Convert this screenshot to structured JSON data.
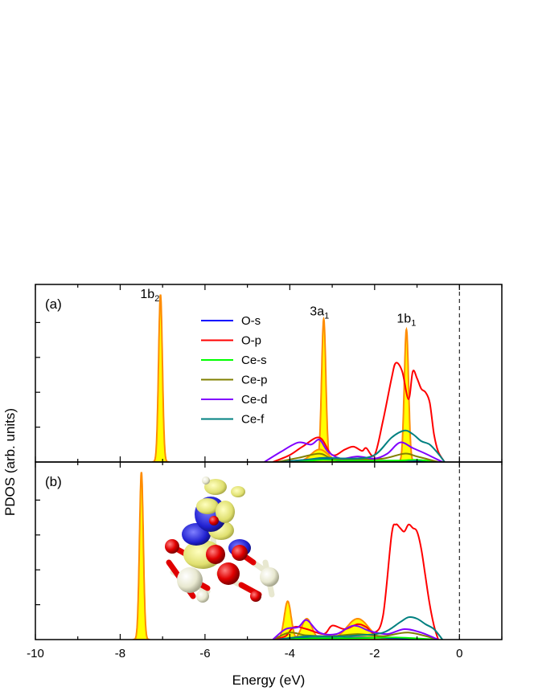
{
  "figure": {
    "ylabel": "PDOS (arb. units)",
    "xlabel": "Energy (eV)",
    "inset_image": "molecule-isosurface-render"
  },
  "chart_data": [
    {
      "type": "area",
      "panel_label": "(a)",
      "xlim": [
        -10,
        1
      ],
      "ylim": [
        0,
        2.5
      ],
      "x_ticks": [
        -10,
        -8,
        -6,
        -4,
        -2,
        0
      ],
      "fermi_level": 0,
      "legend_position": "upper-center",
      "legend": [
        "O-s",
        "O-p",
        "Ce-s",
        "Ce-p",
        "Ce-d",
        "Ce-f"
      ],
      "annotations": [
        {
          "base": "1b",
          "sub": "2",
          "x": -7.3,
          "y": 2.35
        },
        {
          "base": "3a",
          "sub": "1",
          "x": -3.3,
          "y": 2.1
        },
        {
          "base": "1b",
          "sub": "1",
          "x": -1.25,
          "y": 2.0
        }
      ],
      "filled_peaks": [
        {
          "x": -7.05,
          "height": 2.4,
          "width": 0.045
        },
        {
          "x": -3.2,
          "height": 2.05,
          "width": 0.05
        },
        {
          "x": -1.25,
          "height": 1.9,
          "width": 0.05
        },
        {
          "x": -3.3,
          "height": 0.18,
          "width": 0.2
        }
      ],
      "series": [
        {
          "name": "O-s",
          "color": "#0000ff",
          "x": [
            -4.3,
            -3.6,
            -3.2,
            -2.8,
            -1.8,
            -1.2,
            -0.5
          ],
          "y": [
            0,
            0.03,
            0.05,
            0.02,
            0.01,
            0.02,
            0
          ]
        },
        {
          "name": "O-p",
          "color": "#ff0000",
          "x": [
            -4.4,
            -4.0,
            -3.7,
            -3.3,
            -3.0,
            -2.7,
            -2.5,
            -2.3,
            -2.2,
            -2.0,
            -1.8,
            -1.6,
            -1.5,
            -1.35,
            -1.2,
            -1.1,
            -1.0,
            -0.9,
            -0.8,
            -0.7,
            -0.6,
            -0.5,
            -0.35
          ],
          "y": [
            0,
            0.1,
            0.22,
            0.35,
            0.1,
            0.18,
            0.22,
            0.16,
            0.2,
            0.1,
            0.6,
            1.2,
            1.42,
            1.3,
            0.9,
            1.3,
            1.2,
            1.05,
            1.0,
            0.85,
            0.4,
            0.15,
            0
          ]
        },
        {
          "name": "Ce-s",
          "color": "#00ff00",
          "x": [
            -4.2,
            -3.5,
            -3.2,
            -2.5,
            -1.5,
            -1.0,
            -0.5
          ],
          "y": [
            0,
            0.02,
            0.03,
            0.02,
            0.02,
            0.03,
            0
          ]
        },
        {
          "name": "Ce-p",
          "color": "#808000",
          "x": [
            -4.3,
            -3.8,
            -3.3,
            -3.0,
            -2.5,
            -1.8,
            -1.3,
            -1.0,
            -0.5
          ],
          "y": [
            0,
            0.06,
            0.12,
            0.05,
            0.04,
            0.05,
            0.12,
            0.08,
            0
          ]
        },
        {
          "name": "Ce-d",
          "color": "#8000ff",
          "x": [
            -4.6,
            -4.2,
            -3.8,
            -3.5,
            -3.3,
            -3.1,
            -2.8,
            -2.4,
            -2.0,
            -1.7,
            -1.4,
            -1.1,
            -0.8,
            -0.4
          ],
          "y": [
            0,
            0.15,
            0.28,
            0.25,
            0.32,
            0.15,
            0.05,
            0.08,
            0.05,
            0.12,
            0.28,
            0.2,
            0.12,
            0
          ]
        },
        {
          "name": "Ce-f",
          "color": "#008080",
          "x": [
            -4.2,
            -3.5,
            -3.2,
            -2.5,
            -2.0,
            -1.6,
            -1.3,
            -1.1,
            -0.9,
            -0.7,
            -0.5,
            -0.35
          ],
          "y": [
            0,
            0.04,
            0.06,
            0.05,
            0.1,
            0.35,
            0.45,
            0.4,
            0.3,
            0.25,
            0.12,
            0
          ]
        }
      ]
    },
    {
      "type": "area",
      "panel_label": "(b)",
      "xlim": [
        -10,
        1
      ],
      "ylim": [
        0,
        2.5
      ],
      "x_ticks": [
        -10,
        -8,
        -6,
        -4,
        -2,
        0
      ],
      "fermi_level": 0,
      "filled_peaks": [
        {
          "x": -7.5,
          "height": 2.4,
          "width": 0.045
        },
        {
          "x": -4.05,
          "height": 0.55,
          "width": 0.08
        },
        {
          "x": -3.6,
          "height": 0.3,
          "width": 0.12
        },
        {
          "x": -2.4,
          "height": 0.3,
          "width": 0.25
        }
      ],
      "series": [
        {
          "name": "O-s",
          "color": "#0000ff",
          "x": [
            -4.3,
            -3.8,
            -3.0,
            -2.3,
            -1.5,
            -0.5
          ],
          "y": [
            0,
            0.03,
            0.02,
            0.03,
            0.02,
            0
          ]
        },
        {
          "name": "O-p",
          "color": "#ff0000",
          "x": [
            -4.4,
            -4.1,
            -3.9,
            -3.6,
            -3.2,
            -3.0,
            -2.7,
            -2.4,
            -2.2,
            -2.0,
            -1.8,
            -1.6,
            -1.5,
            -1.4,
            -1.3,
            -1.2,
            -1.1,
            -1.0,
            -0.9,
            -0.8,
            -0.7,
            -0.6,
            -0.5
          ],
          "y": [
            0,
            0.05,
            0.18,
            0.15,
            0.08,
            0.2,
            0.15,
            0.22,
            0.18,
            0.1,
            0.35,
            1.5,
            1.65,
            1.6,
            1.55,
            1.65,
            1.6,
            1.55,
            1.3,
            0.9,
            0.5,
            0.2,
            0
          ]
        },
        {
          "name": "Ce-s",
          "color": "#00ff00",
          "x": [
            -4.2,
            -3.5,
            -2.5,
            -1.5,
            -0.5
          ],
          "y": [
            0,
            0.02,
            0.02,
            0.03,
            0
          ]
        },
        {
          "name": "Ce-p",
          "color": "#808000",
          "x": [
            -4.4,
            -4.0,
            -3.6,
            -3.0,
            -2.4,
            -1.8,
            -1.2,
            -0.5
          ],
          "y": [
            0,
            0.1,
            0.06,
            0.05,
            0.08,
            0.05,
            0.1,
            0
          ]
        },
        {
          "name": "Ce-d",
          "color": "#8000ff",
          "x": [
            -4.4,
            -4.1,
            -3.8,
            -3.6,
            -3.3,
            -2.9,
            -2.5,
            -2.1,
            -1.7,
            -1.3,
            -0.9,
            -0.5
          ],
          "y": [
            0,
            0.15,
            0.18,
            0.28,
            0.1,
            0.08,
            0.2,
            0.12,
            0.08,
            0.15,
            0.1,
            0
          ]
        },
        {
          "name": "Ce-f",
          "color": "#008080",
          "x": [
            -4.3,
            -3.6,
            -3.0,
            -2.4,
            -1.8,
            -1.4,
            -1.2,
            -1.0,
            -0.8,
            -0.6,
            -0.4
          ],
          "y": [
            0,
            0.05,
            0.04,
            0.06,
            0.1,
            0.25,
            0.32,
            0.3,
            0.22,
            0.15,
            0
          ]
        }
      ]
    }
  ]
}
